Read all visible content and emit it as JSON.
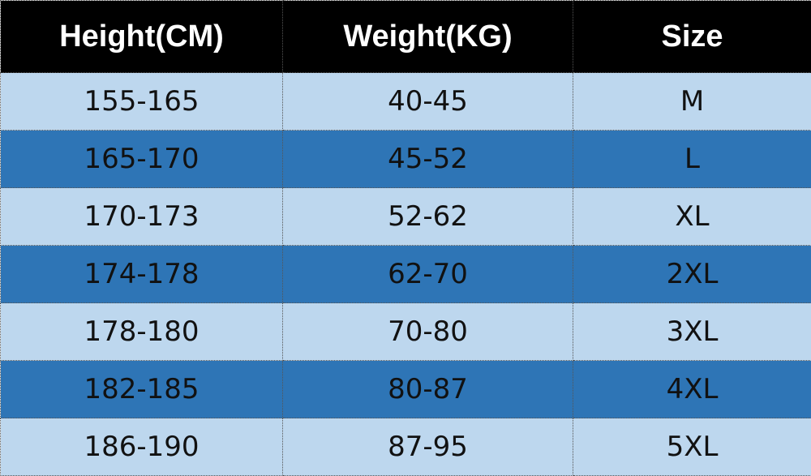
{
  "table": {
    "headers": [
      "Height(CM)",
      "Weight(KG)",
      "Size"
    ],
    "rows": [
      [
        "155-165",
        "40-45",
        "M"
      ],
      [
        "165-170",
        "45-52",
        "L"
      ],
      [
        "170-173",
        "52-62",
        "XL"
      ],
      [
        "174-178",
        "62-70",
        "2XL"
      ],
      [
        "178-180",
        "70-80",
        "3XL"
      ],
      [
        "182-185",
        "80-87",
        "4XL"
      ],
      [
        "186-190",
        "87-95",
        "5XL"
      ]
    ],
    "colors": {
      "header_bg": "#000000",
      "row_light": "#bdd7ee",
      "row_dark": "#2e75b6"
    }
  }
}
